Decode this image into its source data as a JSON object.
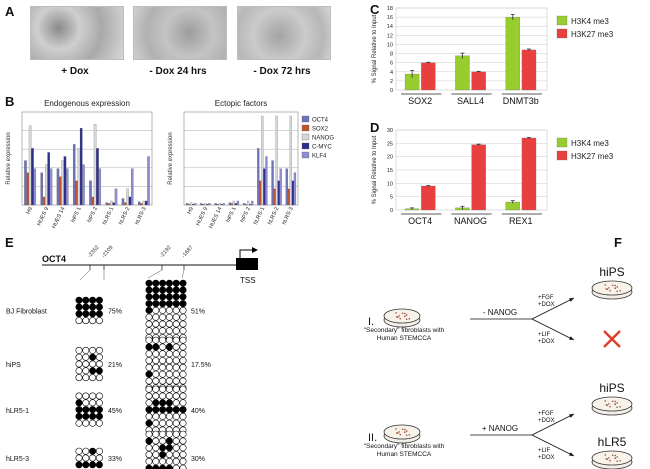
{
  "panels": {
    "a": {
      "label": "A",
      "captions": [
        "+ Dox",
        "- Dox 24 hrs",
        "- Dox 72 hrs"
      ]
    },
    "b": {
      "label": "B"
    },
    "c": {
      "label": "C"
    },
    "d": {
      "label": "D"
    },
    "e": {
      "label": "E"
    },
    "f": {
      "label": "F"
    }
  },
  "colors": {
    "oct4": "#6e72b8",
    "sox2": "#c2532f",
    "nanog": "#d8d8d8",
    "cmyc": "#2e2e8e",
    "klf4": "#8e8ed0",
    "h3k4": "#97cd2f",
    "h3k27": "#e8403f",
    "cross": "#e03c2a"
  },
  "chart_data": [
    {
      "id": "B-left",
      "type": "bar",
      "title": "Endogenous expression",
      "ylabel": "Relative expression",
      "xlabel": "",
      "categories": [
        "H9",
        "HUES 9",
        "HUES 14",
        "hiPS 1",
        "hiPS 2",
        "hLRS-1",
        "hLRS-2",
        "hLRS-3"
      ],
      "ylim": [
        0,
        1.15
      ],
      "series": [
        {
          "name": "OCT4",
          "values": [
            0.55,
            0.4,
            0.45,
            0.75,
            0.3,
            0.03,
            0.08,
            0.04
          ]
        },
        {
          "name": "SOX2",
          "values": [
            0.4,
            0.1,
            0.35,
            0.3,
            0.1,
            0.02,
            0.03,
            0.02
          ]
        },
        {
          "name": "NANOG",
          "values": [
            0.98,
            0.5,
            0.55,
            0.7,
            1.0,
            0.05,
            0.2,
            0.05
          ]
        },
        {
          "name": "C-MYC",
          "values": [
            0.7,
            0.65,
            0.6,
            0.95,
            0.7,
            0.03,
            0.1,
            0.05
          ]
        },
        {
          "name": "KLF4",
          "values": [
            0.45,
            0.45,
            0.45,
            0.5,
            0.45,
            0.2,
            0.45,
            0.6
          ]
        }
      ]
    },
    {
      "id": "B-right",
      "type": "bar",
      "title": "Ectopic factors",
      "ylabel": "Relative expression",
      "xlabel": "",
      "categories": [
        "H9",
        "HUES 9",
        "HUES 14",
        "hiPS 1",
        "hiPS 2",
        "hLRS-1",
        "hLRS-2",
        "hLRS-3"
      ],
      "ylim": [
        0,
        1.15
      ],
      "legend": "right",
      "series": [
        {
          "name": "OCT4",
          "values": [
            0.02,
            0.02,
            0.02,
            0.03,
            0.02,
            0.7,
            0.55,
            0.45
          ]
        },
        {
          "name": "SOX2",
          "values": [
            0.01,
            0.01,
            0.01,
            0.02,
            0.01,
            0.3,
            0.2,
            0.2
          ]
        },
        {
          "name": "NANOG",
          "values": [
            0.03,
            0.02,
            0.02,
            0.05,
            0.05,
            1.1,
            1.1,
            1.1
          ]
        },
        {
          "name": "C-MYC",
          "values": [
            0.01,
            0.01,
            0.01,
            0.02,
            0.01,
            0.45,
            0.3,
            0.3
          ]
        },
        {
          "name": "KLF4",
          "values": [
            0.02,
            0.02,
            0.02,
            0.05,
            0.05,
            0.6,
            0.45,
            0.4
          ]
        }
      ]
    },
    {
      "id": "C",
      "type": "bar",
      "title": "",
      "xlabel": "",
      "ylabel": "% Signal Relative to Input",
      "categories": [
        "SOX2",
        "SALL4",
        "DNMT3b"
      ],
      "ylim": [
        0,
        18
      ],
      "yticks": [
        "0",
        "2",
        "4",
        "6",
        "8",
        "10",
        "12",
        "14",
        "16",
        "18"
      ],
      "legend": "right",
      "series": [
        {
          "name": "H3K4 me3",
          "values": [
            3.5,
            7.5,
            16.0
          ],
          "err": [
            0.8,
            0.6,
            0.6
          ]
        },
        {
          "name": "H3K27 me3",
          "values": [
            6.0,
            4.0,
            8.8
          ],
          "err": [
            0.1,
            0.1,
            0.2
          ]
        }
      ]
    },
    {
      "id": "D",
      "type": "bar",
      "title": "",
      "xlabel": "",
      "ylabel": "% Signal Relative to Input",
      "categories": [
        "OCT4",
        "NANOG",
        "REX1"
      ],
      "ylim": [
        0,
        30
      ],
      "yticks": [
        "0",
        "5",
        "10",
        "15",
        "20",
        "25",
        "30"
      ],
      "legend": "right",
      "series": [
        {
          "name": "H3K4 me3",
          "values": [
            0.5,
            0.8,
            3.0
          ],
          "err": [
            0.3,
            0.6,
            0.5
          ]
        },
        {
          "name": "H3K27 me3",
          "values": [
            9.0,
            24.5,
            27.0
          ],
          "err": [
            0.2,
            0.2,
            0.2
          ]
        }
      ]
    }
  ],
  "methylation": {
    "gene": "OCT4",
    "positions": [
      "-2352",
      "-2109",
      "-2192",
      "-1687"
    ],
    "tss_label": "TSS",
    "samples": [
      {
        "name": "BJ Fibroblast",
        "pct1": "75%",
        "pct2": "51%",
        "g1": [
          "1111",
          "1111",
          "1111",
          "0000"
        ],
        "g2": [
          "111111",
          "111111",
          "111111",
          "111111",
          "100000",
          "000000",
          "000000",
          "000000",
          "000000"
        ]
      },
      {
        "name": "hiPS",
        "pct1": "21%",
        "pct2": "17.5%",
        "g1": [
          "0000",
          "0010",
          "0000",
          "0011",
          "0000"
        ],
        "g2": [
          "000000",
          "110100",
          "000000",
          "000000",
          "000000",
          "100000",
          "000000",
          "000000"
        ]
      },
      {
        "name": "hLR5-1",
        "pct1": "45%",
        "pct2": "40%",
        "g1": [
          "0000",
          "1000",
          "1111",
          "1111",
          "0000"
        ],
        "g2": [
          "000000",
          "000000",
          "011100",
          "111111",
          "000000",
          "100000",
          "000000"
        ]
      },
      {
        "name": "hLR5-3",
        "pct1": "33%",
        "pct2": "30%",
        "g1": [
          "0010",
          "0000",
          "1111"
        ],
        "g2": [
          "000000",
          "100100",
          "001100",
          "001000",
          "000000",
          "111100",
          "000000",
          "000000"
        ]
      }
    ]
  },
  "schemeF": {
    "rows": [
      {
        "roman": "I.",
        "arrow_label": "- NANOG",
        "cell_text_1": "\"Secondary\" fibroblasts with",
        "cell_text_2": "Human STEMCCA",
        "upper_cond_1": "+FGF",
        "upper_cond_2": "+DOX",
        "upper_result": "hiPS",
        "lower_cond_1": "+LIF",
        "lower_cond_2": "+DOX",
        "lower_result": ""
      },
      {
        "roman": "II.",
        "arrow_label": "+ NANOG",
        "cell_text_1": "\"Secondary\" fibroblasts with",
        "cell_text_2": "Human STEMCCA",
        "upper_cond_1": "+FGF",
        "upper_cond_2": "+DOX",
        "upper_result": "hiPS",
        "lower_cond_1": "+LIF",
        "lower_cond_2": "+DOX",
        "lower_result": "hLR5"
      }
    ]
  }
}
